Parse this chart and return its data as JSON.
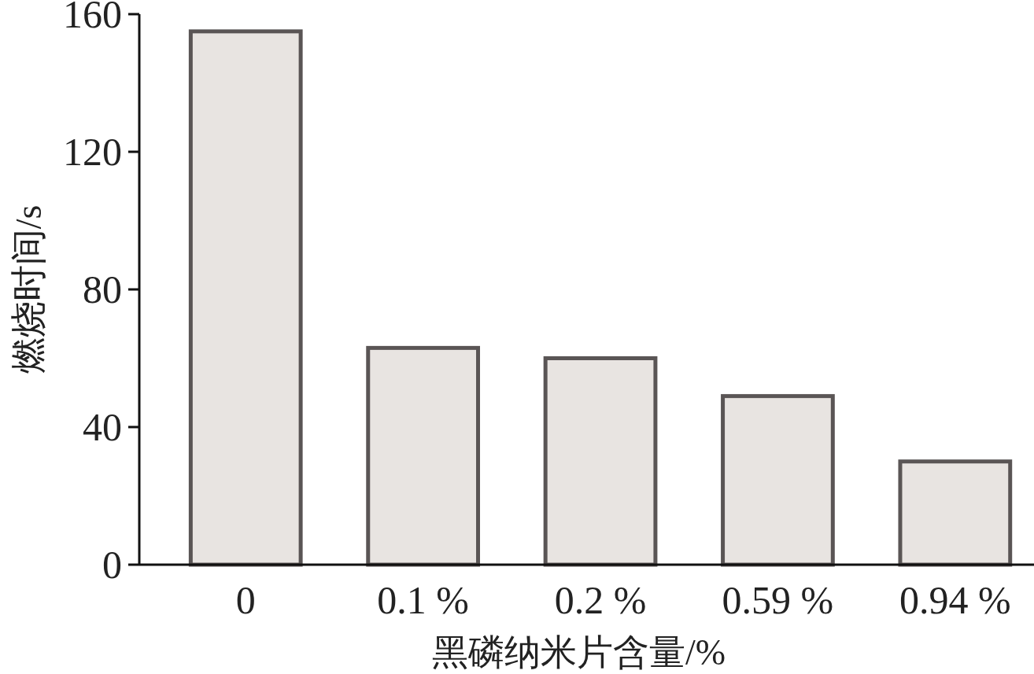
{
  "chart_data": {
    "type": "bar",
    "xlabel": "黑磷纳米片含量/%",
    "ylabel": "燃烧时间/s",
    "categories": [
      "0",
      "0.1 %",
      "0.2 %",
      "0.59 %",
      "0.94 %"
    ],
    "values": [
      155,
      63,
      60,
      49,
      30
    ],
    "color": "#e8e4e1",
    "ylim": [
      0,
      160
    ],
    "yticks": [
      0,
      40,
      80,
      120,
      160
    ],
    "grid": false
  }
}
